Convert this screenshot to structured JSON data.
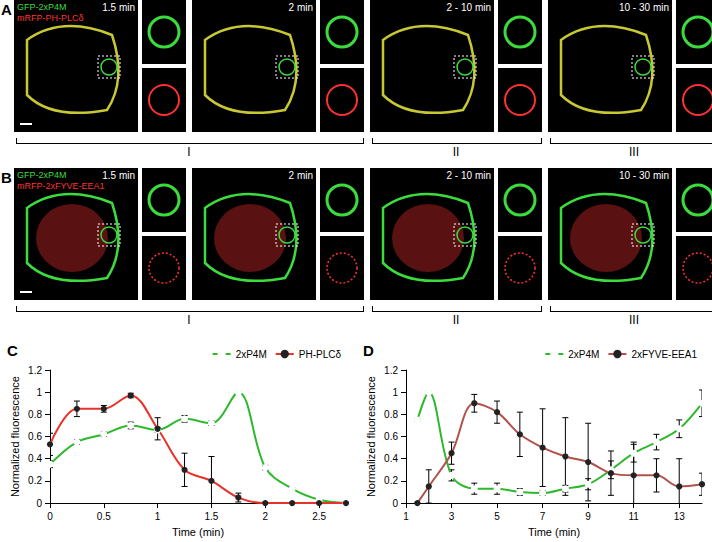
{
  "panels": [
    {
      "label": "A",
      "channels": [
        {
          "name": "GFP-2xP4M",
          "color": "#3ddc3d"
        },
        {
          "name": "mRFP-PH-PLCδ",
          "color": "#ff3030"
        }
      ],
      "frames": [
        {
          "time": "1.5 min",
          "phase": "I"
        },
        {
          "time": "2 min",
          "phase": "I"
        },
        {
          "time": "2 - 10 min",
          "phase": "II"
        },
        {
          "time": "10 - 30 min",
          "phase": "III"
        }
      ]
    },
    {
      "label": "B",
      "channels": [
        {
          "name": "GFP-2xP4M",
          "color": "#3ddc3d"
        },
        {
          "name": "mRFP-2xFYVE-EEA1",
          "color": "#ff3030"
        }
      ],
      "frames": [
        {
          "time": "1.5 min",
          "phase": "I"
        },
        {
          "time": "2 min",
          "phase": "I"
        },
        {
          "time": "2 - 10 min",
          "phase": "II"
        },
        {
          "time": "10 - 30 min",
          "phase": "III"
        }
      ]
    }
  ],
  "chart_data": [
    {
      "type": "line",
      "title": "C",
      "xlabel": "Time (min)",
      "ylabel": "Normalized fluorescence",
      "x": [
        0,
        0.25,
        0.5,
        0.75,
        1,
        1.25,
        1.5,
        1.75,
        2,
        2.25,
        2.5,
        2.75
      ],
      "xlim": [
        0,
        2.75
      ],
      "xticks": [
        0,
        0.5,
        1,
        1.5,
        2,
        2.5
      ],
      "ylim": [
        0,
        1.2
      ],
      "yticks": [
        0,
        0.2,
        0.4,
        0.6,
        0.8,
        1,
        1.2
      ],
      "grid": false,
      "legend": "top right",
      "line_style": "smooth",
      "series": [
        {
          "name": "2xP4M",
          "color": "#2eb82e",
          "marker": "circle-open",
          "values": [
            0.35,
            0.55,
            0.62,
            0.7,
            0.66,
            0.76,
            0.72,
            1.0,
            0.32,
            0.13,
            0.03,
            0
          ],
          "errors": [
            0.03,
            0.02,
            0.02,
            0.03,
            0.02,
            0.03,
            0.02,
            0.01,
            0.02,
            0.01,
            0.01,
            0
          ]
        },
        {
          "name": "PH-PLCδ",
          "color": "#e8322a",
          "marker": "circle",
          "values": [
            0.53,
            0.85,
            0.85,
            0.97,
            0.67,
            0.3,
            0.2,
            0.05,
            0,
            0,
            0,
            0
          ],
          "errors": [
            0.1,
            0.07,
            0.03,
            0.02,
            0.1,
            0.15,
            0.22,
            0.04,
            0,
            0,
            0,
            0
          ]
        }
      ]
    },
    {
      "type": "line",
      "title": "D",
      "xlabel": "Time (min)",
      "ylabel": "Normalized fluorescence",
      "x": [
        1.5,
        2,
        3,
        4,
        5,
        6,
        7,
        8,
        9,
        10,
        11,
        12,
        13,
        14
      ],
      "xlim": [
        1,
        14
      ],
      "xticks": [
        1,
        3,
        5,
        7,
        9,
        11,
        13
      ],
      "ylim": [
        0,
        1.2
      ],
      "yticks": [
        0,
        0.2,
        0.4,
        0.6,
        0.8,
        1,
        1.2
      ],
      "grid": false,
      "legend": "top right",
      "line_style": "smooth",
      "series": [
        {
          "name": "2xP4M",
          "color": "#2eb82e",
          "marker": "circle-open",
          "values": [
            0.75,
            1.0,
            0.25,
            0.13,
            0.13,
            0.1,
            0.09,
            0.13,
            0.17,
            0.3,
            0.45,
            0.55,
            0.67,
            0.9
          ],
          "errors": [
            0.01,
            0.01,
            0.05,
            0.05,
            0.05,
            0.03,
            0.02,
            0.03,
            0.05,
            0.08,
            0.08,
            0.07,
            0.08,
            0.12
          ]
        },
        {
          "name": "2xFYVE-EEA1",
          "color": "#b0524a",
          "marker": "circle",
          "values": [
            0,
            0.15,
            0.45,
            0.9,
            0.82,
            0.62,
            0.5,
            0.42,
            0.37,
            0.27,
            0.25,
            0.25,
            0.15,
            0.17
          ],
          "errors": [
            0,
            0.15,
            0.1,
            0.08,
            0.1,
            0.2,
            0.35,
            0.35,
            0.35,
            0.2,
            0.3,
            0.15,
            0.25,
            0.1
          ]
        }
      ]
    }
  ]
}
